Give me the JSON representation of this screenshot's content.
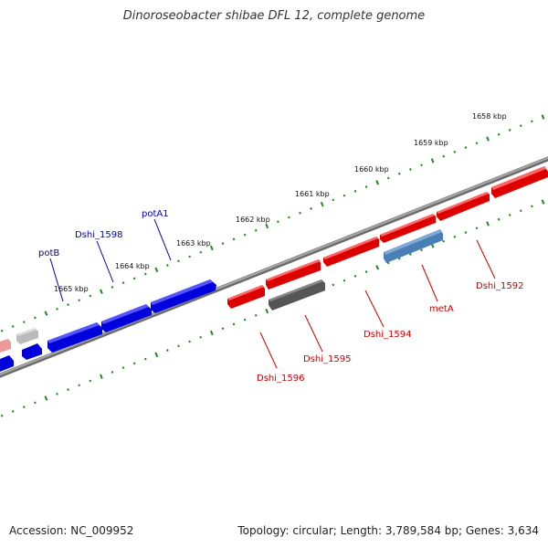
{
  "title": "Dinoroseobacter shibae DFL 12, complete genome",
  "footer": {
    "accession": "Accession: NC_009952",
    "stats": "Topology: circular; Length: 3,789,584 bp; Genes: 3,634"
  },
  "colors": {
    "forward_gene": "#0000ee",
    "reverse_gene": "#ee1111",
    "highlight_gene": "#4a7fb5",
    "pseudo_gene": "#555555",
    "faded_reverse": "#ee9999",
    "faded_gray": "#bbbbbb",
    "backbone": "#808080",
    "tick": "#228822",
    "forward_label": "#0000aa",
    "reverse_label": "#cc0000"
  },
  "scale_labels": [
    {
      "kbp": 1658,
      "text": "1658 kbp"
    },
    {
      "kbp": 1659,
      "text": "1659 kbp"
    },
    {
      "kbp": 1660,
      "text": "1660 kbp"
    },
    {
      "kbp": 1661,
      "text": "1661 kbp"
    },
    {
      "kbp": 1662,
      "text": "1662 kbp"
    },
    {
      "kbp": 1663,
      "text": "1663 kbp"
    },
    {
      "kbp": 1664,
      "text": "1664 kbp"
    },
    {
      "kbp": 1665,
      "text": "1665 kbp"
    }
  ],
  "genes": [
    {
      "label": "Dshi_1592",
      "strand": "reverse",
      "type": "cds"
    },
    {
      "label": "metA",
      "strand": "reverse",
      "type": "highlight"
    },
    {
      "label": "Dshi_1594",
      "strand": "reverse",
      "type": "cds"
    },
    {
      "label": "Dshi_1595",
      "strand": "reverse",
      "type": "pseudo"
    },
    {
      "label": "Dshi_1596",
      "strand": "reverse",
      "type": "cds"
    },
    {
      "label": "potA1",
      "strand": "forward",
      "type": "cds"
    },
    {
      "label": "Dshi_1598",
      "strand": "forward",
      "type": "cds"
    },
    {
      "label": "potB",
      "strand": "forward",
      "type": "cds"
    }
  ]
}
